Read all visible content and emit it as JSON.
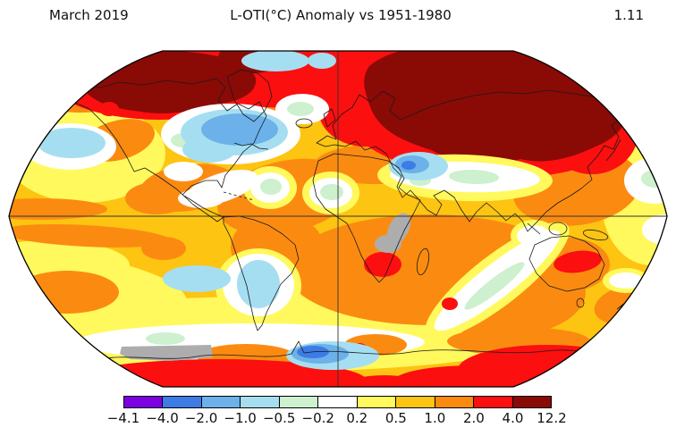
{
  "header": {
    "period": "March 2019",
    "title": "L-OTI(°C) Anomaly vs 1951-1980",
    "global_mean": "1.11"
  },
  "colorbar": {
    "tick_labels": [
      "−4.1",
      "−4.0",
      "−2.0",
      "−1.0",
      "−0.5",
      "−0.2",
      "0.2",
      "0.5",
      "1.0",
      "2.0",
      "4.0",
      "12.2"
    ],
    "segment_colors": [
      "#7d00e0",
      "#3d7be5",
      "#6cb1e9",
      "#a6def1",
      "#cdf0cf",
      "#ffffff",
      "#fff95d",
      "#fdc412",
      "#fb8b10",
      "#fb0f0f",
      "#8a0a06"
    ],
    "border_color": "#000000"
  },
  "chart_data": {
    "type": "heatmap",
    "subtype": "global-temperature-anomaly-map",
    "projection": "Robinson",
    "period": "March 2019",
    "units": "°C",
    "baseline": "1951-1980",
    "global_mean_anomaly": 1.11,
    "scale_breakpoints": [
      -4.1,
      -4.0,
      -2.0,
      -1.0,
      -0.5,
      -0.2,
      0.2,
      0.5,
      1.0,
      2.0,
      4.0,
      12.2
    ],
    "scale_colors": [
      "#7d00e0",
      "#3d7be5",
      "#6cb1e9",
      "#a6def1",
      "#cdf0cf",
      "#ffffff",
      "#fff95d",
      "#fdc412",
      "#fb8b10",
      "#fb0f0f",
      "#8a0a06"
    ],
    "missing_data_color": "#adadad",
    "legend_position": "bottom",
    "graticule": [
      "equator",
      "central meridian"
    ],
    "notable_features": [
      "darkest-red (>4°C) anomalies over Siberia and over Arctic Canada/Alaska/Greenland",
      "red warm anomalies across Europe, Kamchatka/Sea of Okhotsk, interior Australia, southern Africa, parts of coastal Antarctica",
      "blue cool anomalies over central/eastern North America (Great Lakes), the Middle East, Patagonia, a patch of coastal Antarctica and the North Pacific",
      "gray missing-data patches over south-central Africa and part of Antarctica"
    ]
  }
}
